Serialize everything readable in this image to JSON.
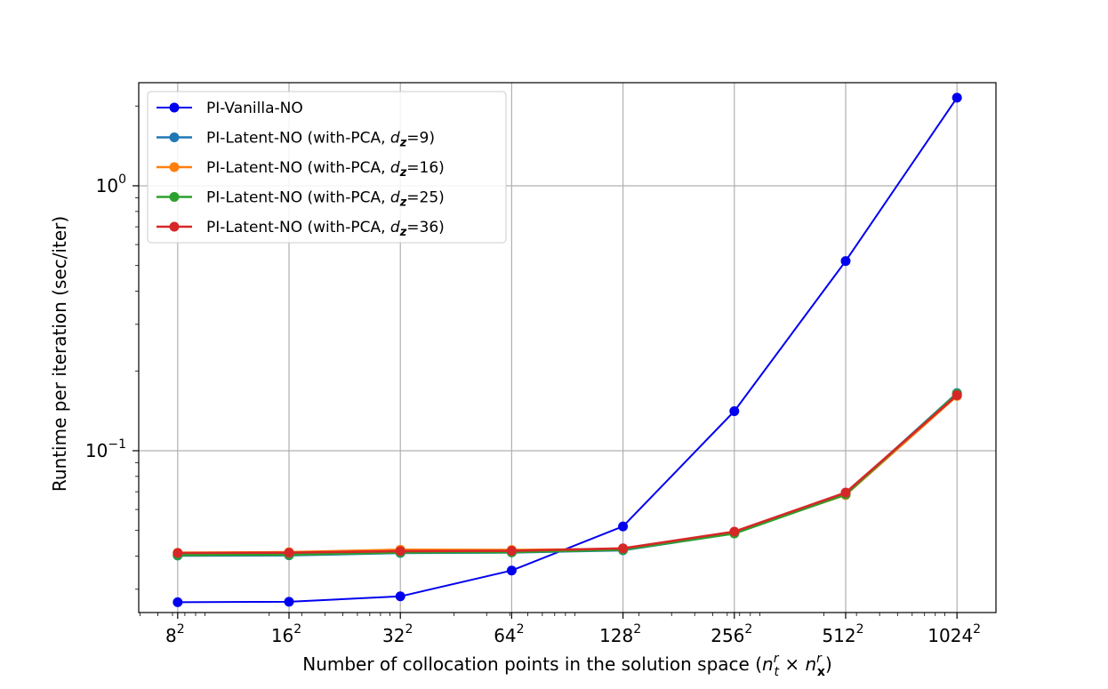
{
  "chart_data": {
    "type": "line",
    "x_tick_labels": [
      {
        "base": "8",
        "exp": "2"
      },
      {
        "base": "16",
        "exp": "2"
      },
      {
        "base": "32",
        "exp": "2"
      },
      {
        "base": "64",
        "exp": "2"
      },
      {
        "base": "128",
        "exp": "2"
      },
      {
        "base": "256",
        "exp": "2"
      },
      {
        "base": "512",
        "exp": "2"
      },
      {
        "base": "1024",
        "exp": "2"
      }
    ],
    "x": [
      64,
      256,
      1024,
      4096,
      16384,
      65536,
      262144,
      1048576
    ],
    "xscale": "log",
    "yscale": "log",
    "ylim": [
      0.0245,
      2.45
    ],
    "y_tick_labels": [
      {
        "value": 1.0,
        "base": "10",
        "exp": "0"
      },
      {
        "value": 0.1,
        "base": "10",
        "exp": "−1"
      }
    ],
    "xlabel": {
      "prefix": "Number of collocation points in the solution space (",
      "n1": "n",
      "sup1": "r",
      "sub1": "t",
      "times": " × ",
      "n2": "n",
      "sup2": "r",
      "sub2": "x",
      "suffix": ")"
    },
    "ylabel": "Runtime per iteration (sec/iter)",
    "grid": true,
    "legend_position": "top-left",
    "series": [
      {
        "name": "PI-Vanilla-NO",
        "color": "#0000ee",
        "values": [
          0.0268,
          0.0269,
          0.0282,
          0.0353,
          0.0518,
          0.141,
          0.52,
          2.15
        ]
      },
      {
        "name_prefix": "PI-Latent-NO (with-PCA, ",
        "name_var": "d",
        "name_sub": "z",
        "name_suffix": "=9)",
        "color": "#1f77b4",
        "values": [
          0.0402,
          0.0403,
          0.0411,
          0.0413,
          0.0421,
          0.0488,
          0.0686,
          0.165
        ]
      },
      {
        "name_prefix": "PI-Latent-NO (with-PCA, ",
        "name_var": "d",
        "name_sub": "z",
        "name_suffix": "=16)",
        "color": "#ff7f0e",
        "values": [
          0.0412,
          0.0414,
          0.0423,
          0.0422,
          0.0426,
          0.0492,
          0.0681,
          0.161
        ]
      },
      {
        "name_prefix": "PI-Latent-NO (with-PCA, ",
        "name_var": "d",
        "name_sub": "z",
        "name_suffix": "=25)",
        "color": "#2ca02c",
        "values": [
          0.0404,
          0.0405,
          0.0413,
          0.0414,
          0.0423,
          0.0487,
          0.0684,
          0.164
        ]
      },
      {
        "name_prefix": "PI-Latent-NO (with-PCA, ",
        "name_var": "d",
        "name_sub": "z",
        "name_suffix": "=36)",
        "color": "#d62728",
        "values": [
          0.0411,
          0.0412,
          0.0418,
          0.0419,
          0.0428,
          0.0495,
          0.0695,
          0.162
        ]
      }
    ]
  }
}
